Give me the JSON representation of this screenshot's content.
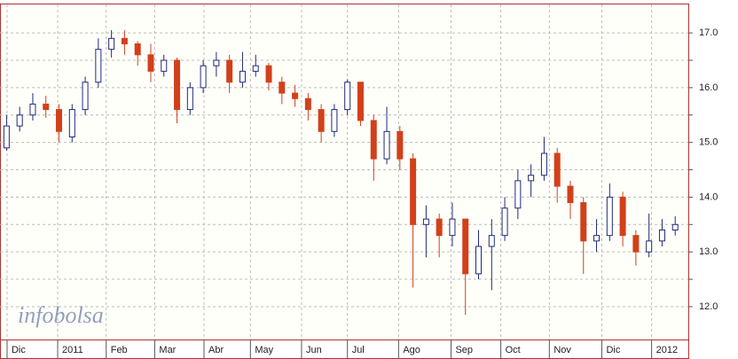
{
  "chart_data": {
    "type": "candlestick",
    "watermark": "infobolsa",
    "up_color": "#1f2a7a",
    "down_color": "#d2401a",
    "grid": true,
    "x": [
      0,
      1,
      2,
      3,
      4,
      5,
      6,
      7,
      8,
      9,
      10,
      11,
      12,
      13,
      14,
      15,
      16,
      17,
      18,
      19,
      20,
      21,
      22,
      23,
      24,
      25,
      26,
      27,
      28,
      29,
      30,
      31,
      32,
      33,
      34,
      35,
      36,
      37,
      38,
      39,
      40,
      41,
      42,
      43,
      44,
      45,
      46,
      47,
      48,
      49,
      50,
      51
    ],
    "open": [
      14.9,
      15.3,
      15.5,
      15.7,
      15.6,
      15.1,
      15.6,
      16.1,
      16.7,
      16.9,
      16.8,
      16.6,
      16.3,
      16.5,
      15.6,
      16.0,
      16.4,
      16.5,
      16.1,
      16.3,
      16.4,
      16.1,
      15.9,
      15.8,
      15.6,
      15.2,
      15.6,
      16.1,
      15.4,
      14.7,
      15.2,
      14.7,
      13.5,
      13.6,
      13.3,
      13.6,
      12.6,
      13.1,
      13.3,
      13.8,
      14.3,
      14.4,
      14.8,
      14.2,
      13.9,
      13.2,
      13.3,
      14.0,
      13.3,
      13.0,
      13.2,
      13.4
    ],
    "high": [
      15.5,
      15.65,
      15.9,
      15.85,
      15.7,
      15.7,
      16.2,
      16.9,
      17.05,
      17.05,
      16.85,
      16.8,
      16.6,
      16.55,
      16.1,
      16.5,
      16.65,
      16.6,
      16.65,
      16.6,
      16.45,
      16.2,
      16.05,
      15.9,
      15.7,
      15.7,
      16.15,
      16.1,
      15.5,
      15.65,
      15.3,
      14.8,
      13.85,
      13.7,
      13.9,
      13.6,
      13.4,
      13.6,
      14.0,
      14.5,
      14.6,
      15.1,
      14.9,
      14.3,
      14.0,
      13.6,
      14.25,
      14.1,
      13.4,
      13.7,
      13.6,
      13.65
    ],
    "low": [
      14.85,
      15.2,
      15.4,
      15.45,
      15.0,
      15.0,
      15.5,
      16.0,
      16.55,
      16.6,
      16.4,
      16.1,
      16.2,
      15.35,
      15.5,
      15.9,
      16.2,
      15.9,
      16.0,
      16.2,
      15.95,
      15.7,
      15.65,
      15.4,
      15.0,
      15.1,
      15.5,
      15.3,
      14.3,
      14.6,
      14.5,
      12.35,
      12.9,
      12.9,
      13.1,
      11.85,
      12.5,
      12.3,
      13.2,
      13.6,
      14.0,
      14.3,
      13.9,
      13.6,
      12.6,
      13.0,
      13.2,
      13.1,
      12.75,
      12.9,
      13.1,
      13.3
    ],
    "close": [
      15.3,
      15.5,
      15.7,
      15.6,
      15.2,
      15.6,
      16.1,
      16.7,
      16.9,
      16.8,
      16.6,
      16.3,
      16.5,
      15.6,
      16.0,
      16.4,
      16.5,
      16.1,
      16.3,
      16.4,
      16.1,
      15.9,
      15.8,
      15.6,
      15.2,
      15.6,
      16.1,
      15.4,
      14.7,
      15.2,
      14.7,
      13.5,
      13.6,
      13.3,
      13.6,
      12.6,
      13.1,
      13.3,
      13.8,
      14.3,
      14.4,
      14.8,
      14.2,
      13.9,
      13.2,
      13.3,
      14.0,
      13.3,
      13.0,
      13.2,
      13.4,
      13.5
    ],
    "xlim": [
      -0.5,
      52
    ],
    "xticks": [
      {
        "value": 0.04,
        "label": "Dic"
      },
      {
        "value": 3.9,
        "label": "2011"
      },
      {
        "value": 7.6,
        "label": "Feb"
      },
      {
        "value": 11.3,
        "label": "Mar"
      },
      {
        "value": 15.06,
        "label": "Abr"
      },
      {
        "value": 18.6,
        "label": "May"
      },
      {
        "value": 22.5,
        "label": "Jun"
      },
      {
        "value": 26.0,
        "label": "Jul"
      },
      {
        "value": 29.9,
        "label": "Ago"
      },
      {
        "value": 33.9,
        "label": "Sep"
      },
      {
        "value": 37.7,
        "label": "Oct"
      },
      {
        "value": 41.4,
        "label": "Nov"
      },
      {
        "value": 45.4,
        "label": "Dic"
      },
      {
        "value": 49.2,
        "label": "2012"
      }
    ],
    "ylim": [
      11.4,
      17.52
    ],
    "yticks": [
      {
        "value": 12,
        "label": "12.0"
      },
      12.5,
      {
        "value": 13,
        "label": "13.0"
      },
      13.5,
      {
        "value": 14,
        "label": "14.0"
      },
      14.5,
      {
        "value": 15,
        "label": "15.0"
      },
      15.5,
      {
        "value": 16,
        "label": "16.0"
      },
      16.5,
      {
        "value": 17,
        "label": "17.0"
      }
    ]
  }
}
